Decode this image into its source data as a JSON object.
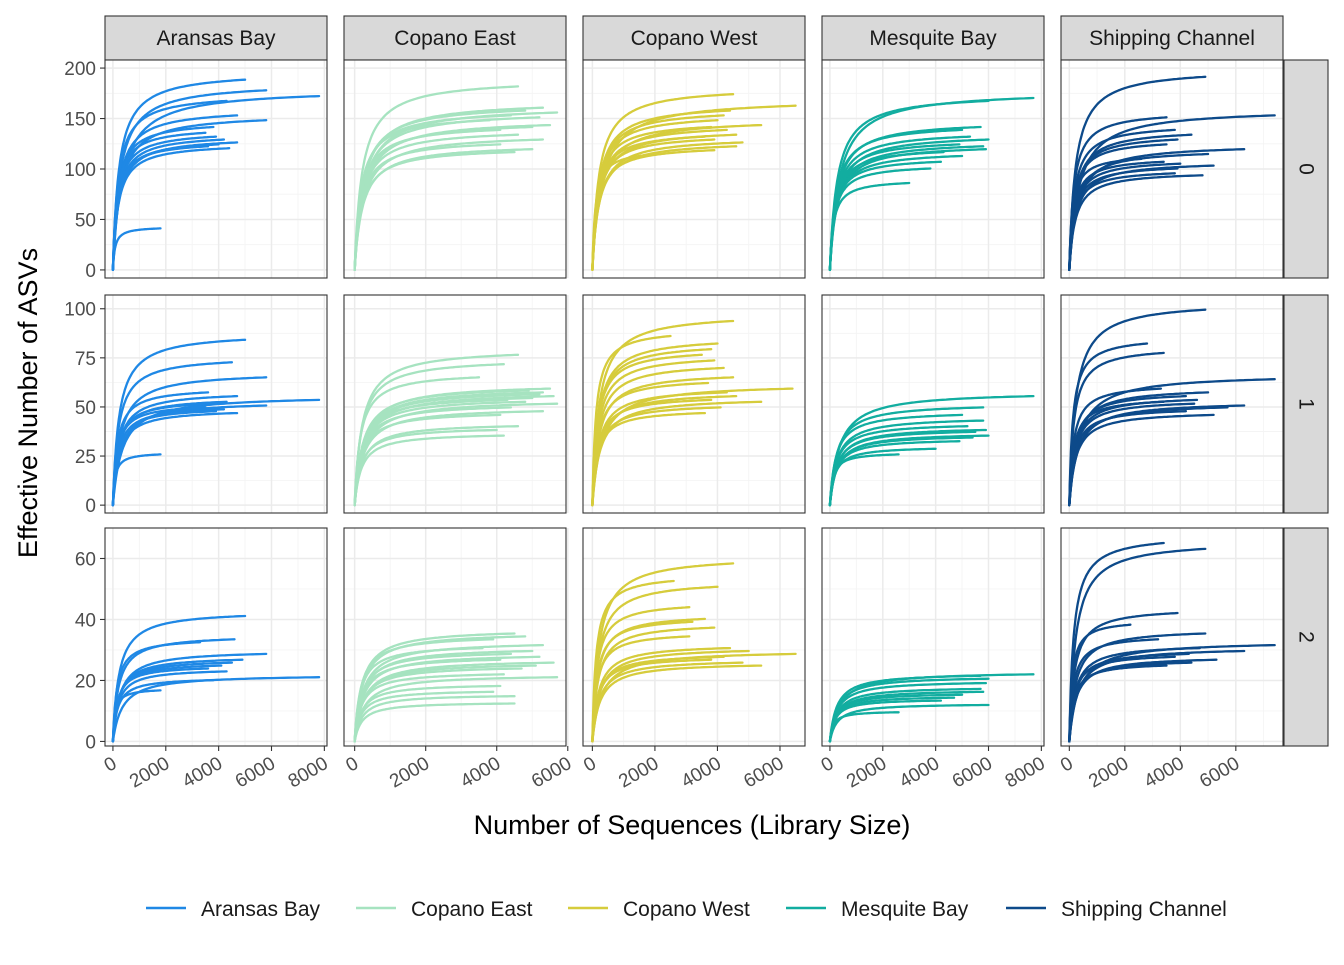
{
  "chart_data": {
    "type": "line",
    "layout": "facet_grid",
    "xlabel": "Number of Sequences (Library Size)",
    "ylabel": "Effective Number of ASVs",
    "columns": [
      "Aransas Bay",
      "Copano East",
      "Copano West",
      "Mesquite Bay",
      "Shipping Channel"
    ],
    "rows": [
      "0",
      "1",
      "2"
    ],
    "colors": {
      "Aransas Bay": "#1f88e5",
      "Copano East": "#a6e3c0",
      "Copano West": "#d6cc3c",
      "Mesquite Bay": "#12ada0",
      "Shipping Channel": "#0d4a8a"
    },
    "legend": {
      "position": "bottom",
      "entries": [
        "Aransas Bay",
        "Copano East",
        "Copano West",
        "Mesquite Bay",
        "Shipping Channel"
      ]
    },
    "grid": true,
    "x_axes": {
      "Aransas Bay": {
        "xlim": [
          -300,
          8100
        ],
        "ticks": [
          0,
          2000,
          4000,
          6000,
          8000
        ]
      },
      "Copano East": {
        "xlim": [
          -300,
          5950
        ],
        "ticks": [
          0,
          2000,
          4000,
          6000
        ]
      },
      "Copano West": {
        "xlim": [
          -300,
          6800
        ],
        "ticks": [
          0,
          2000,
          4000,
          6000
        ]
      },
      "Mesquite Bay": {
        "xlim": [
          -300,
          8100
        ],
        "ticks": [
          0,
          2000,
          4000,
          6000,
          8000
        ]
      },
      "Shipping Channel": {
        "xlim": [
          -300,
          7700
        ],
        "ticks": [
          0,
          2000,
          4000,
          6000
        ]
      }
    },
    "y_axes": {
      "0": {
        "ylim": [
          -8,
          208
        ],
        "ticks": [
          0,
          50,
          100,
          150,
          200
        ]
      },
      "1": {
        "ylim": [
          -4,
          107
        ],
        "ticks": [
          0,
          25,
          50,
          75,
          100
        ]
      },
      "2": {
        "ylim": [
          -1.5,
          70
        ],
        "ticks": [
          0,
          20,
          40,
          60
        ]
      }
    },
    "curve_model": "y = A * x / (k + x) for x in [0, end]",
    "series": [
      {
        "name": "Aransas Bay",
        "depth": "0",
        "curves": [
          [
            197,
            5000
          ],
          [
            186,
            5800
          ],
          [
            180,
            7800
          ],
          [
            175,
            4300
          ],
          [
            160,
            4700
          ],
          [
            155,
            5800
          ],
          [
            148,
            3800
          ],
          [
            142,
            3500
          ],
          [
            138,
            3900
          ],
          [
            135,
            4200
          ],
          [
            132,
            4700
          ],
          [
            130,
            4000
          ],
          [
            128,
            3600
          ],
          [
            126,
            4400
          ],
          [
            43,
            1800
          ]
        ]
      },
      {
        "name": "Copano East",
        "depth": "0",
        "curves": [
          [
            190,
            4600
          ],
          [
            168,
            5300
          ],
          [
            165,
            4800
          ],
          [
            163,
            5700
          ],
          [
            160,
            4400
          ],
          [
            158,
            5200
          ],
          [
            155,
            3800
          ],
          [
            150,
            5500
          ],
          [
            148,
            5000
          ],
          [
            145,
            4100
          ],
          [
            140,
            4600
          ],
          [
            135,
            5300
          ],
          [
            130,
            4100
          ],
          [
            125,
            5000
          ],
          [
            122,
            4500
          ]
        ]
      },
      {
        "name": "Copano West",
        "depth": "0",
        "curves": [
          [
            182,
            4500
          ],
          [
            170,
            6500
          ],
          [
            165,
            4400
          ],
          [
            160,
            4200
          ],
          [
            155,
            4000
          ],
          [
            150,
            5400
          ],
          [
            148,
            3800
          ],
          [
            145,
            4300
          ],
          [
            140,
            4600
          ],
          [
            138,
            3600
          ],
          [
            135,
            3900
          ],
          [
            132,
            4800
          ],
          [
            128,
            4600
          ],
          [
            124,
            3900
          ],
          [
            120,
            2100
          ]
        ]
      },
      {
        "name": "Mesquite Bay",
        "depth": "0",
        "curves": [
          [
            178,
            7700
          ],
          [
            175,
            6000
          ],
          [
            148,
            5700
          ],
          [
            145,
            5000
          ],
          [
            138,
            5300
          ],
          [
            135,
            6000
          ],
          [
            130,
            4900
          ],
          [
            128,
            5800
          ],
          [
            125,
            5900
          ],
          [
            122,
            4300
          ],
          [
            118,
            5000
          ],
          [
            112,
            4200
          ],
          [
            105,
            3800
          ],
          [
            90,
            3000
          ]
        ]
      },
      {
        "name": "Shipping Channel",
        "depth": "0",
        "curves": [
          [
            200,
            4900
          ],
          [
            160,
            7400
          ],
          [
            158,
            3500
          ],
          [
            145,
            3800
          ],
          [
            140,
            4400
          ],
          [
            135,
            3900
          ],
          [
            130,
            3500
          ],
          [
            125,
            6300
          ],
          [
            120,
            5000
          ],
          [
            115,
            2600
          ],
          [
            112,
            3400
          ],
          [
            110,
            4000
          ],
          [
            108,
            5200
          ],
          [
            105,
            3900
          ],
          [
            100,
            3800
          ],
          [
            98,
            4800
          ]
        ]
      },
      {
        "name": "Aransas Bay",
        "depth": "1",
        "curves": [
          [
            88,
            5000
          ],
          [
            76,
            4500
          ],
          [
            68,
            5800
          ],
          [
            60,
            3600
          ],
          [
            58,
            4700
          ],
          [
            56,
            7800
          ],
          [
            55,
            4300
          ],
          [
            54,
            3800
          ],
          [
            53,
            5800
          ],
          [
            52,
            3500
          ],
          [
            51,
            4200
          ],
          [
            50,
            3900
          ],
          [
            49,
            4700
          ],
          [
            27,
            1800
          ]
        ]
      },
      {
        "name": "Copano East",
        "depth": "1",
        "curves": [
          [
            80,
            4600
          ],
          [
            75,
            4200
          ],
          [
            68,
            3500
          ],
          [
            62,
            5500
          ],
          [
            61,
            4900
          ],
          [
            60,
            5300
          ],
          [
            59,
            5200
          ],
          [
            58,
            5600
          ],
          [
            57,
            5000
          ],
          [
            56,
            4300
          ],
          [
            55,
            4800
          ],
          [
            54,
            5700
          ],
          [
            52,
            4400
          ],
          [
            50,
            5300
          ],
          [
            48,
            4100
          ],
          [
            42,
            4600
          ],
          [
            40,
            4000
          ],
          [
            37,
            4200
          ]
        ]
      },
      {
        "name": "Copano West",
        "depth": "1",
        "curves": [
          [
            98,
            4500
          ],
          [
            90,
            2500
          ],
          [
            86,
            4000
          ],
          [
            83,
            3800
          ],
          [
            80,
            3500
          ],
          [
            77,
            3900
          ],
          [
            73,
            4200
          ],
          [
            68,
            4500
          ],
          [
            65,
            3700
          ],
          [
            62,
            6400
          ],
          [
            60,
            4300
          ],
          [
            58,
            4600
          ],
          [
            56,
            3800
          ],
          [
            55,
            5400
          ],
          [
            52,
            4100
          ],
          [
            49,
            3600
          ]
        ]
      },
      {
        "name": "Mesquite Bay",
        "depth": "1",
        "curves": [
          [
            58,
            7700
          ],
          [
            52,
            5800
          ],
          [
            48,
            5000
          ],
          [
            45,
            5800
          ],
          [
            42,
            5200
          ],
          [
            40,
            5900
          ],
          [
            39,
            5500
          ],
          [
            37,
            6000
          ],
          [
            36,
            5400
          ],
          [
            34,
            4900
          ],
          [
            30,
            4000
          ],
          [
            27,
            2600
          ]
        ]
      },
      {
        "name": "Shipping Channel",
        "depth": "1",
        "curves": [
          [
            104,
            4900
          ],
          [
            86,
            2800
          ],
          [
            81,
            3400
          ],
          [
            67,
            7400
          ],
          [
            62,
            3300
          ],
          [
            60,
            5000
          ],
          [
            58,
            4200
          ],
          [
            56,
            4600
          ],
          [
            55,
            3400
          ],
          [
            54,
            4500
          ],
          [
            53,
            6300
          ],
          [
            52,
            5700
          ],
          [
            50,
            4200
          ],
          [
            48,
            5200
          ]
        ]
      },
      {
        "name": "Aransas Bay",
        "depth": "2",
        "curves": [
          [
            43,
            5000
          ],
          [
            35,
            4600
          ],
          [
            34,
            3300
          ],
          [
            30,
            5800
          ],
          [
            28,
            4900
          ],
          [
            27,
            4500
          ],
          [
            26,
            4100
          ],
          [
            25,
            3600
          ],
          [
            24,
            4300
          ],
          [
            22,
            7800
          ],
          [
            21,
            3800
          ],
          [
            17.5,
            1800
          ]
        ]
      },
      {
        "name": "Copano East",
        "depth": "2",
        "curves": [
          [
            37,
            4500
          ],
          [
            36,
            4800
          ],
          [
            35,
            3900
          ],
          [
            33,
            5300
          ],
          [
            32,
            3600
          ],
          [
            31,
            5000
          ],
          [
            30,
            4400
          ],
          [
            29,
            5200
          ],
          [
            28,
            4100
          ],
          [
            27,
            5600
          ],
          [
            26,
            5100
          ],
          [
            25,
            4700
          ],
          [
            23,
            4200
          ],
          [
            22,
            5700
          ],
          [
            19,
            4100
          ],
          [
            17,
            3900
          ],
          [
            15.5,
            4500
          ],
          [
            13,
            4500
          ]
        ]
      },
      {
        "name": "Copano West",
        "depth": "2",
        "curves": [
          [
            61,
            4500
          ],
          [
            55,
            2600
          ],
          [
            53,
            4000
          ],
          [
            46,
            3100
          ],
          [
            42,
            3600
          ],
          [
            41,
            3200
          ],
          [
            39,
            3900
          ],
          [
            36,
            3100
          ],
          [
            32,
            4400
          ],
          [
            31,
            5000
          ],
          [
            30,
            6500
          ],
          [
            29,
            4200
          ],
          [
            28,
            3800
          ],
          [
            27,
            4800
          ],
          [
            26,
            5400
          ]
        ]
      },
      {
        "name": "Mesquite Bay",
        "depth": "2",
        "curves": [
          [
            23,
            7700
          ],
          [
            22.5,
            5700
          ],
          [
            21.5,
            6000
          ],
          [
            20,
            5900
          ],
          [
            18,
            5700
          ],
          [
            17,
            5800
          ],
          [
            16,
            5000
          ],
          [
            15,
            4700
          ],
          [
            14,
            4200
          ],
          [
            12.5,
            6000
          ],
          [
            10,
            2600
          ]
        ]
      },
      {
        "name": "Shipping Channel",
        "depth": "2",
        "curves": [
          [
            68,
            3400
          ],
          [
            66,
            4900
          ],
          [
            44,
            3900
          ],
          [
            40,
            2200
          ],
          [
            37,
            4900
          ],
          [
            35,
            3200
          ],
          [
            33,
            7400
          ],
          [
            32,
            4700
          ],
          [
            31,
            6300
          ],
          [
            30,
            4300
          ],
          [
            29,
            3800
          ],
          [
            28,
            5300
          ],
          [
            27,
            4400
          ],
          [
            26,
            3500
          ]
        ]
      }
    ]
  }
}
